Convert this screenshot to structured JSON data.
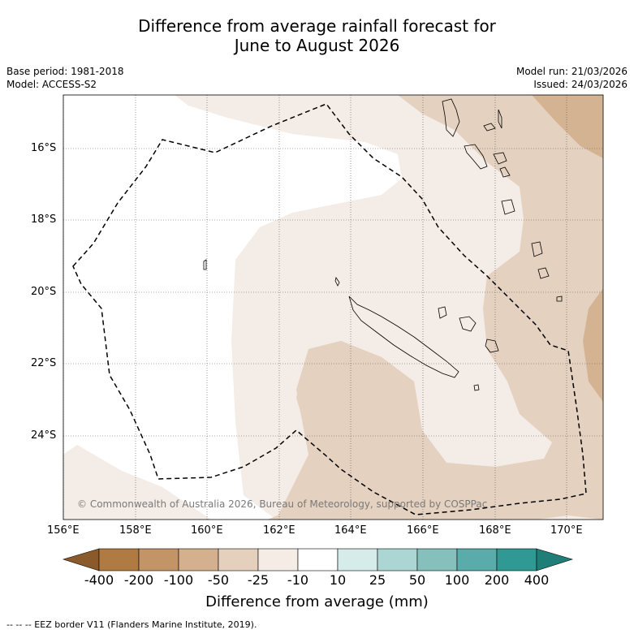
{
  "title": {
    "line1": "Difference from average rainfall forecast for",
    "line2": "June to August 2026"
  },
  "meta": {
    "base_period": "Base period: 1981-2018",
    "model": "Model: ACCESS-S2",
    "model_run": "Model run: 21/03/2026",
    "issued": "Issued: 24/03/2026"
  },
  "map": {
    "lat_labels": [
      "16°S",
      "18°S",
      "20°S",
      "22°S",
      "24°S"
    ],
    "lon_labels": [
      "156°E",
      "158°E",
      "160°E",
      "162°E",
      "164°E",
      "166°E",
      "168°E",
      "170°E"
    ],
    "copyright": "© Commonwealth of Australia 2026, Bureau of Meteorology, supported by COSPPac"
  },
  "colorbar": {
    "labels": [
      "-400",
      "-200",
      "-100",
      "-50",
      "-25",
      "-10",
      "10",
      "25",
      "50",
      "100",
      "200",
      "400"
    ],
    "colors": [
      "#8b5a2b",
      "#b07a43",
      "#c29466",
      "#d4b08e",
      "#e4d0bd",
      "#f4ece5",
      "#ffffff",
      "#d6ecea",
      "#acd6d3",
      "#86c0bc",
      "#5aacaa",
      "#319993",
      "#1f7f78"
    ],
    "title": "Difference from average (mm)"
  },
  "footer": "--  --  -- EEZ border V11 (Flanders Marine Institute, 2019).",
  "colors": {
    "light_tan": "#f4ece6",
    "mid_tan": "#e4d1bf",
    "dark_tan": "#d4b393"
  }
}
